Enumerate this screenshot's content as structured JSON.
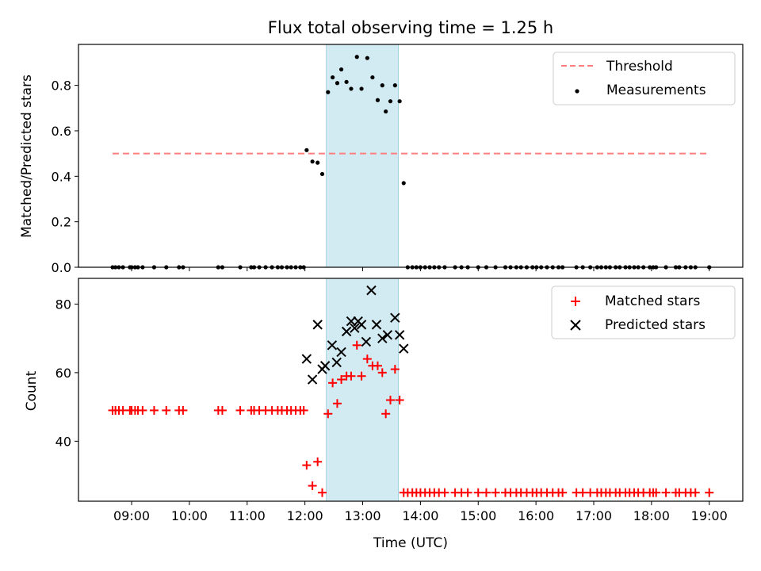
{
  "chart_data": [
    {
      "type": "scatter",
      "title": "Flux total observing time = 1.25 h",
      "xlabel": "",
      "ylabel": "Matched/Predicted stars",
      "xlim": [
        8.08,
        19.58
      ],
      "ylim": [
        0.0,
        0.98
      ],
      "yticks": [
        0.0,
        0.2,
        0.4,
        0.6,
        0.8
      ],
      "ytick_labels": [
        "0.0",
        "0.2",
        "0.4",
        "0.6",
        "0.8"
      ],
      "shaded_region": {
        "x0": 12.37,
        "x1": 13.62,
        "color": "#add8e6"
      },
      "grid": false,
      "legend_position": "top-right",
      "series": [
        {
          "name": "Threshold",
          "kind": "dashed-line",
          "color": "#ff7f7f",
          "x": [
            8.67,
            19.0
          ],
          "y": [
            0.5,
            0.5
          ]
        },
        {
          "name": "Measurements",
          "kind": "points",
          "color": "#000000",
          "x": [
            8.67,
            8.72,
            8.78,
            8.85,
            8.97,
            9.0,
            9.06,
            9.11,
            9.19,
            9.39,
            9.6,
            9.82,
            9.89,
            10.5,
            10.57,
            10.88,
            11.07,
            11.12,
            11.21,
            11.32,
            11.43,
            11.53,
            11.6,
            11.69,
            11.76,
            11.84,
            11.92,
            11.98,
            12.03,
            12.13,
            12.22,
            12.3,
            12.4,
            12.48,
            12.56,
            12.63,
            12.72,
            12.8,
            12.9,
            12.98,
            13.08,
            13.17,
            13.26,
            13.34,
            13.4,
            13.48,
            13.56,
            13.64,
            13.71,
            13.78,
            13.86,
            13.93,
            14.0,
            14.08,
            14.16,
            14.24,
            14.32,
            14.42,
            14.6,
            14.71,
            14.82,
            15.0,
            15.14,
            15.3,
            15.47,
            15.56,
            15.66,
            15.74,
            15.84,
            15.94,
            16.01,
            16.09,
            16.19,
            16.29,
            16.39,
            16.46,
            16.7,
            16.81,
            16.94,
            17.06,
            17.13,
            17.21,
            17.28,
            17.38,
            17.45,
            17.55,
            17.62,
            17.7,
            17.77,
            17.86,
            17.97,
            18.03,
            18.08,
            18.25,
            18.42,
            18.48,
            18.59,
            18.68,
            18.76,
            19.0
          ],
          "y": [
            0,
            0,
            0,
            0,
            0,
            0,
            0,
            0,
            0,
            0,
            0,
            0,
            0,
            0,
            0,
            0,
            0,
            0,
            0,
            0,
            0,
            0,
            0,
            0,
            0,
            0,
            0,
            0,
            0.515,
            0.465,
            0.46,
            0.41,
            0.77,
            0.835,
            0.81,
            0.87,
            0.815,
            0.785,
            0.925,
            0.785,
            0.92,
            0.835,
            0.735,
            0.8,
            0.685,
            0.73,
            0.8,
            0.73,
            0.37,
            0,
            0,
            0,
            0,
            0,
            0,
            0,
            0,
            0,
            0,
            0,
            0,
            0,
            0,
            0,
            0,
            0,
            0,
            0,
            0,
            0,
            0,
            0,
            0,
            0,
            0,
            0,
            0,
            0,
            0,
            0,
            0,
            0,
            0,
            0,
            0,
            0,
            0,
            0,
            0,
            0,
            0,
            0,
            0,
            0,
            0,
            0,
            0,
            0,
            0,
            0
          ]
        }
      ]
    },
    {
      "type": "scatter",
      "title": "",
      "xlabel": "Time (UTC)",
      "ylabel": "Count",
      "xlim": [
        8.08,
        19.58
      ],
      "ylim": [
        22.5,
        87.5
      ],
      "yticks": [
        40,
        60,
        80
      ],
      "ytick_labels": [
        "40",
        "60",
        "80"
      ],
      "xticks": [
        9,
        10,
        11,
        12,
        13,
        14,
        15,
        16,
        17,
        18,
        19
      ],
      "xtick_labels": [
        "09:00",
        "10:00",
        "11:00",
        "12:00",
        "13:00",
        "14:00",
        "15:00",
        "16:00",
        "17:00",
        "18:00",
        "19:00"
      ],
      "shaded_region": {
        "x0": 12.37,
        "x1": 13.62,
        "color": "#add8e6"
      },
      "grid": false,
      "legend_position": "top-right",
      "series": [
        {
          "name": "Matched stars",
          "marker": "plus",
          "color": "#ff0000",
          "x": [
            8.67,
            8.72,
            8.78,
            8.85,
            8.97,
            9.0,
            9.06,
            9.11,
            9.19,
            9.39,
            9.6,
            9.82,
            9.89,
            10.5,
            10.57,
            10.88,
            11.07,
            11.12,
            11.21,
            11.32,
            11.43,
            11.53,
            11.6,
            11.69,
            11.76,
            11.84,
            11.92,
            11.98,
            12.03,
            12.13,
            12.22,
            12.3,
            12.4,
            12.48,
            12.56,
            12.63,
            12.72,
            12.8,
            12.9,
            12.98,
            13.08,
            13.17,
            13.26,
            13.34,
            13.4,
            13.48,
            13.56,
            13.64,
            13.71,
            13.78,
            13.86,
            13.93,
            14.0,
            14.08,
            14.16,
            14.24,
            14.32,
            14.42,
            14.6,
            14.71,
            14.82,
            15.0,
            15.14,
            15.3,
            15.47,
            15.56,
            15.66,
            15.74,
            15.84,
            15.94,
            16.01,
            16.09,
            16.19,
            16.29,
            16.39,
            16.46,
            16.7,
            16.81,
            16.94,
            17.06,
            17.13,
            17.21,
            17.28,
            17.38,
            17.45,
            17.55,
            17.62,
            17.7,
            17.77,
            17.86,
            17.97,
            18.03,
            18.08,
            18.25,
            18.42,
            18.48,
            18.59,
            18.68,
            18.76,
            19.0
          ],
          "y": [
            49,
            49,
            49,
            49,
            49,
            49,
            49,
            49,
            49,
            49,
            49,
            49,
            49,
            49,
            49,
            49,
            49,
            49,
            49,
            49,
            49,
            49,
            49,
            49,
            49,
            49,
            49,
            49,
            33,
            27,
            34,
            25,
            48,
            57,
            51,
            58,
            59,
            59,
            68,
            59,
            64,
            62,
            62,
            60,
            48,
            52,
            61,
            52,
            25,
            25,
            25,
            25,
            25,
            25,
            25,
            25,
            25,
            25,
            25,
            25,
            25,
            25,
            25,
            25,
            25,
            25,
            25,
            25,
            25,
            25,
            25,
            25,
            25,
            25,
            25,
            25,
            25,
            25,
            25,
            25,
            25,
            25,
            25,
            25,
            25,
            25,
            25,
            25,
            25,
            25,
            25,
            25,
            25,
            25,
            25,
            25,
            25,
            25,
            25,
            25
          ]
        },
        {
          "name": "Predicted stars",
          "marker": "x",
          "color": "#000000",
          "x": [
            12.03,
            12.13,
            12.22,
            12.3,
            12.35,
            12.47,
            12.55,
            12.63,
            12.72,
            12.8,
            12.86,
            12.92,
            12.98,
            13.06,
            13.15,
            13.24,
            13.34,
            13.43,
            13.56,
            13.64,
            13.71
          ],
          "y": [
            64,
            58,
            74,
            61,
            62,
            68,
            63,
            66,
            72,
            75,
            73,
            75,
            74,
            69,
            84,
            74,
            70,
            71,
            76,
            71,
            67
          ]
        }
      ]
    }
  ]
}
